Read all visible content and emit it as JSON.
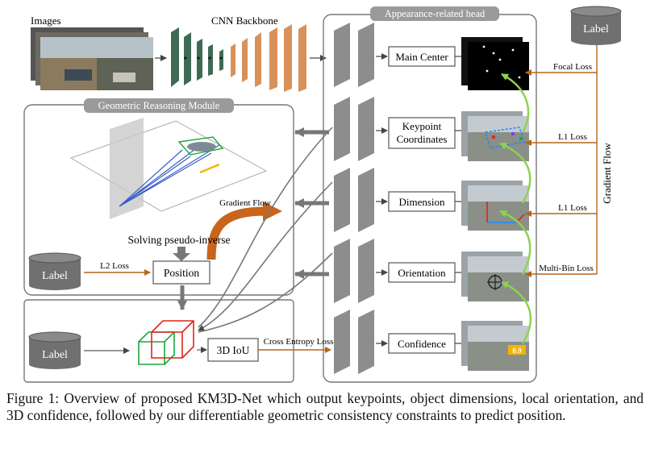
{
  "top": {
    "images_label": "Images",
    "backbone_label": "CNN Backbone"
  },
  "head": {
    "title": "Appearance-related head",
    "outputs": [
      "Main Center",
      "Keypoint Coordinates",
      "Dimension",
      "Orientation",
      "Confidence"
    ]
  },
  "geo": {
    "title": "Geometric Reasoning Module",
    "solving": "Solving pseudo-inverse",
    "position": "Position",
    "gradient_flow": "Gradient Flow"
  },
  "labels": {
    "label": "Label"
  },
  "losses": {
    "l2": "L2 Loss",
    "cross_entropy": "Cross Entropy Loss",
    "focal": "Focal Loss",
    "l1_a": "L1 Loss",
    "l1_b": "L1 Loss",
    "multibin": "Multi-Bin Loss"
  },
  "right": {
    "gradient_flow": "Gradient Flow",
    "confidence_value": "0.9"
  },
  "iou": {
    "label": "3D IoU"
  },
  "caption": "Figure 1: Overview of proposed KM3D-Net which output keypoints, object dimensions, local orientation, and 3D confidence, followed by our differentiable geometric consistency constraints to predict position.",
  "colors": {
    "backbone_green": "#3f6b55",
    "backbone_orange": "#d9915a",
    "gradient_arrow": "#c8651b",
    "flow_green": "#8fd14f",
    "box_red": "#e2231a",
    "box_green": "#1aa83a",
    "loss_line": "#b5651d",
    "conf_yellow": "#f5b400"
  }
}
